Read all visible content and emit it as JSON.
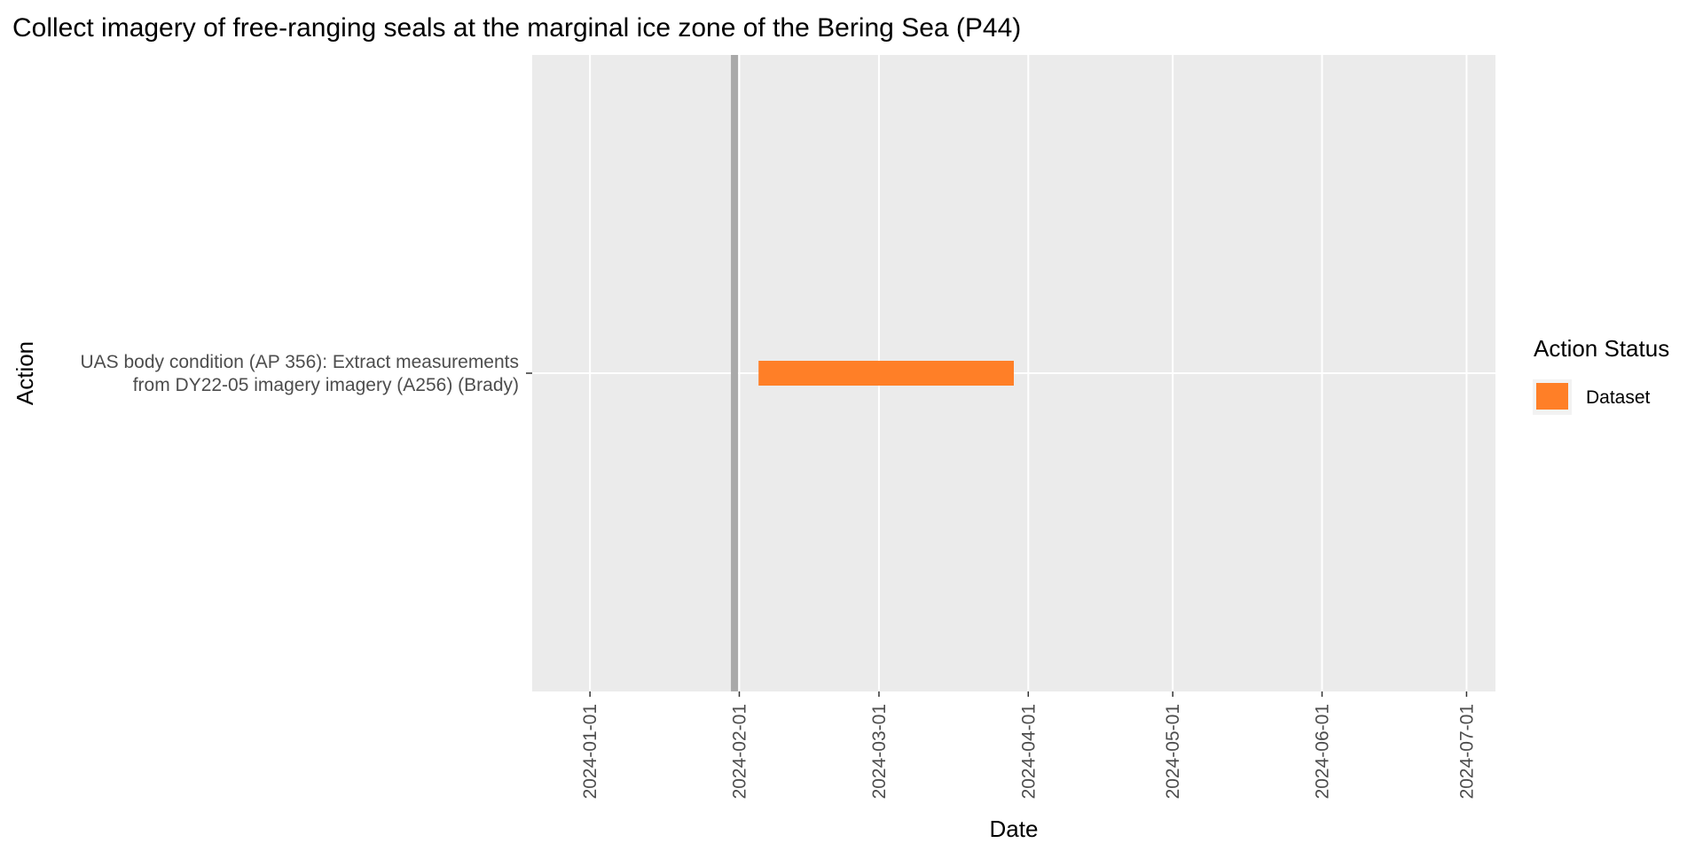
{
  "chart_data": {
    "type": "bar",
    "orientation": "horizontal",
    "title": "Collect imagery of free-ranging seals at the marginal ice zone of the Bering Sea (P44)",
    "xlabel": "Date",
    "ylabel": "Action",
    "xlim": [
      "2023-12-20",
      "2024-07-07"
    ],
    "x_ticks": [
      "2024-01-01",
      "2024-02-01",
      "2024-03-01",
      "2024-04-01",
      "2024-05-01",
      "2024-06-01",
      "2024-07-01"
    ],
    "grid": true,
    "reference_line": {
      "date": "2024-01-31",
      "color": "#a9a9a9"
    },
    "categories": [
      [
        "UAS body condition (AP 356): Extract measurements",
        "from DY22-05 imagery imagery (A256) (Brady)"
      ]
    ],
    "series": [
      {
        "name": "Dataset",
        "color": "#ff7f27",
        "bars": [
          {
            "category_index": 0,
            "start": "2024-02-05",
            "end": "2024-03-29"
          }
        ]
      }
    ],
    "legend": {
      "title": "Action Status",
      "placement": "right",
      "entries": [
        {
          "label": "Dataset",
          "color": "#ff7f27"
        }
      ]
    },
    "colors": {
      "panel_background": "#ebebeb",
      "gridline": "#ffffff"
    }
  }
}
